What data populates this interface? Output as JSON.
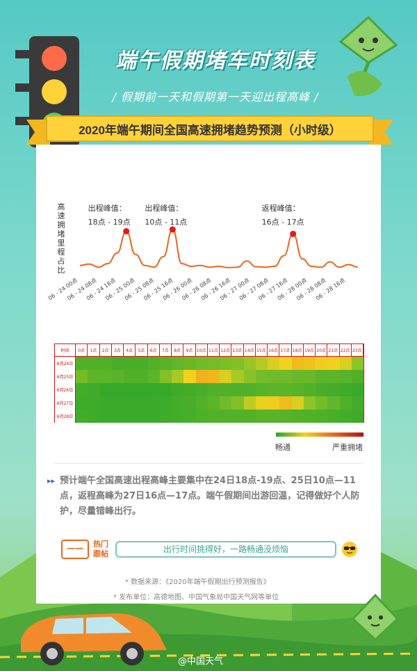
{
  "header": {
    "title": "端午假期堵车时刻表",
    "subtitle": "/ 假期前一天和假期第一天迎出程高峰 /",
    "ribbon": "2020年端午期间全国高速拥堵趋势预测（小时级）"
  },
  "line_chart": {
    "y_label": [
      "高",
      "速",
      "拥",
      "堵",
      "里",
      "程",
      "占",
      "比"
    ],
    "peaks": [
      {
        "title": "出程峰值：",
        "range": "18点 - 19点"
      },
      {
        "title": "出程峰值：",
        "range": "10点 - 11点"
      },
      {
        "title": "返程峰值：",
        "range": "16点 - 17点"
      }
    ],
    "x_ticks": [
      "06 - 24 00点",
      "06 - 24 08点",
      "06 - 24 16点",
      "06 - 25 00点",
      "06 - 25 08点",
      "06 - 25 16点",
      "06 - 26 00点",
      "06 - 26 08点",
      "06 - 26 16点",
      "06 - 27 00点",
      "06 - 27 08点",
      "06 - 27 16点",
      "06 - 28 00点",
      "06 - 28 08点",
      "06 - 28 16点"
    ]
  },
  "chart_data": {
    "type": "line",
    "x": [
      "06-24 00点",
      "06-24 04点",
      "06-24 08点",
      "06-24 12点",
      "06-24 16点",
      "06-24 19点",
      "06-24 22点",
      "06-25 02点",
      "06-25 06点",
      "06-25 08点",
      "06-25 11点",
      "06-25 14点",
      "06-25 18点",
      "06-25 22点",
      "06-26 04点",
      "06-26 08点",
      "06-26 12点",
      "06-26 16点",
      "06-26 20点",
      "06-27 00点",
      "06-27 06点",
      "06-27 10点",
      "06-27 14点",
      "06-27 17点",
      "06-27 20点",
      "06-28 00点",
      "06-28 06点",
      "06-28 10点",
      "06-28 14点",
      "06-28 18点",
      "06-28 22点"
    ],
    "values": [
      10,
      13,
      6,
      14,
      38,
      88,
      35,
      10,
      6,
      30,
      92,
      14,
      8,
      10,
      6,
      8,
      5,
      6,
      20,
      7,
      6,
      8,
      32,
      82,
      25,
      8,
      6,
      18,
      6,
      12,
      6
    ],
    "ylim": [
      0,
      100
    ],
    "grid": false,
    "highlight_points": [
      5,
      10,
      23
    ]
  },
  "heatmap": {
    "header_label": "时间",
    "hours": [
      "0点",
      "1点",
      "2点",
      "3点",
      "4点",
      "5点",
      "6点",
      "7点",
      "8点",
      "9点",
      "10点",
      "11点",
      "12点",
      "13点",
      "14点",
      "15点",
      "16点",
      "17点",
      "18点",
      "19点",
      "20点",
      "21点",
      "22点",
      "23点"
    ],
    "rows": [
      {
        "label": "6月24日",
        "levels": [
          0.15,
          0.15,
          0.15,
          0.12,
          0.12,
          0.12,
          0.15,
          0.18,
          0.22,
          0.25,
          0.28,
          0.3,
          0.32,
          0.35,
          0.42,
          0.48,
          0.55,
          0.6,
          0.68,
          0.66,
          0.62,
          0.6,
          0.55,
          0.4
        ]
      },
      {
        "label": "6月25日",
        "levels": [
          0.3,
          0.2,
          0.2,
          0.18,
          0.15,
          0.15,
          0.2,
          0.35,
          0.45,
          0.6,
          0.72,
          0.7,
          0.55,
          0.45,
          0.38,
          0.3,
          0.28,
          0.28,
          0.25,
          0.25,
          0.2,
          0.2,
          0.18,
          0.15
        ]
      },
      {
        "label": "6月26日",
        "levels": [
          0.1,
          0.08,
          0.05,
          0.05,
          0.05,
          0.05,
          0.05,
          0.05,
          0.08,
          0.1,
          0.12,
          0.15,
          0.15,
          0.15,
          0.15,
          0.18,
          0.2,
          0.2,
          0.18,
          0.15,
          0.12,
          0.1,
          0.08,
          0.06
        ]
      },
      {
        "label": "6月27日",
        "levels": [
          0.08,
          0.08,
          0.06,
          0.06,
          0.06,
          0.06,
          0.06,
          0.08,
          0.1,
          0.12,
          0.15,
          0.2,
          0.28,
          0.35,
          0.5,
          0.58,
          0.62,
          0.68,
          0.55,
          0.4,
          0.3,
          0.22,
          0.15,
          0.1
        ]
      },
      {
        "label": "6月28日",
        "levels": [
          0.1,
          0.08,
          0.06,
          0.06,
          0.06,
          0.06,
          0.06,
          0.08,
          0.1,
          0.12,
          0.14,
          0.16,
          0.16,
          0.16,
          0.16,
          0.18,
          0.18,
          0.18,
          0.16,
          0.15,
          0.14,
          0.12,
          0.1,
          0.08
        ]
      }
    ],
    "legend_low": "畅通",
    "legend_high": "严重拥堵"
  },
  "summary": {
    "icon": "double-chevron-right-icon",
    "text": "预计端午全国高速出程高峰主要集中在24日18点-19点、25日10点—11点，返程高峰为27日16点—17点。端午假期间出游回温，记得做好个人防护，尽量错峰出行。"
  },
  "hot": {
    "box_text": "——",
    "label": "热门跟帖",
    "pill": "出行时间挑得好，一路畅通没烦恼"
  },
  "source": {
    "line1": "* 数据来源：《2020年端午假期出行预测报告》",
    "line2": "* 发布单位：高德地图、中国气象局中国天气网等单位"
  },
  "watermark": "@中国天气",
  "colors": {
    "line": "#e9661e",
    "peak_dot": "#e31b1b",
    "heat_low": "#2aa52a",
    "heat_mid": "#f0d21d",
    "heat_high": "#e9661e"
  }
}
